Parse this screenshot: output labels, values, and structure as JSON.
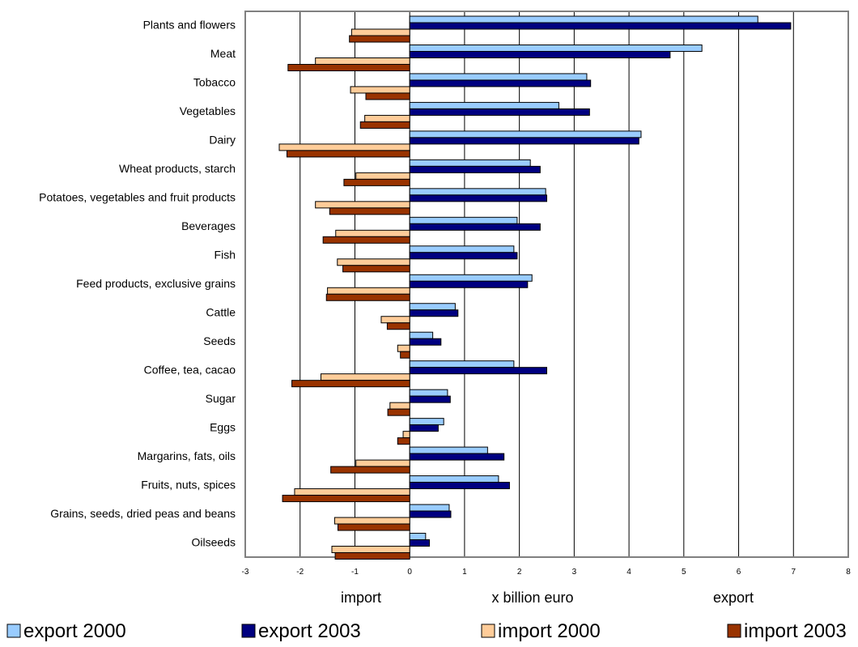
{
  "chart_data": {
    "type": "bar",
    "orientation": "horizontal",
    "categories": [
      "Plants and flowers",
      "Meat",
      "Tobacco",
      "Vegetables",
      "Dairy",
      "Wheat products, starch",
      "Potatoes, vegetables and fruit products",
      "Beverages",
      "Fish",
      "Feed products, exclusive grains",
      "Cattle",
      "Seeds",
      "Coffee, tea, cacao",
      "Sugar",
      "Eggs",
      "Margarins, fats, oils",
      "Fruits, nuts, spices",
      "Grains, seeds, dried peas and beans",
      "Oilseeds"
    ],
    "series": [
      {
        "name": "export 2000",
        "color": "#99ccff",
        "values": [
          6.35,
          5.33,
          3.23,
          2.72,
          4.22,
          2.2,
          2.48,
          1.96,
          1.9,
          2.23,
          0.83,
          0.42,
          1.9,
          0.69,
          0.62,
          1.42,
          1.62,
          0.72,
          0.29
        ]
      },
      {
        "name": "export 2003",
        "color": "#000080",
        "values": [
          6.95,
          4.75,
          3.3,
          3.28,
          4.18,
          2.38,
          2.5,
          2.38,
          1.96,
          2.15,
          0.88,
          0.57,
          2.5,
          0.74,
          0.52,
          1.72,
          1.82,
          0.75,
          0.36
        ]
      },
      {
        "name": "import 2000",
        "color": "#ffcc99",
        "values": [
          -1.06,
          -1.72,
          -1.08,
          -0.82,
          -2.38,
          -0.98,
          -1.72,
          -1.35,
          -1.32,
          -1.5,
          -0.52,
          -0.22,
          -1.62,
          -0.36,
          -0.12,
          -0.98,
          -2.1,
          -1.37,
          -1.42
        ]
      },
      {
        "name": "import 2003",
        "color": "#993300",
        "values": [
          -1.1,
          -2.22,
          -0.8,
          -0.9,
          -2.24,
          -1.2,
          -1.46,
          -1.58,
          -1.22,
          -1.52,
          -0.41,
          -0.17,
          -2.15,
          -0.4,
          -0.22,
          -1.44,
          -2.32,
          -1.31,
          -1.36
        ]
      }
    ],
    "xlim": [
      -3,
      8
    ],
    "xticks": [
      "-3",
      "-2",
      "-1",
      "0",
      "1",
      "2",
      "3",
      "4",
      "5",
      "6",
      "7",
      "8"
    ],
    "xlabel_left": "import",
    "xlabel": "x billion euro",
    "xlabel_right": "export",
    "grid": "vertical",
    "legend": "bottom"
  }
}
